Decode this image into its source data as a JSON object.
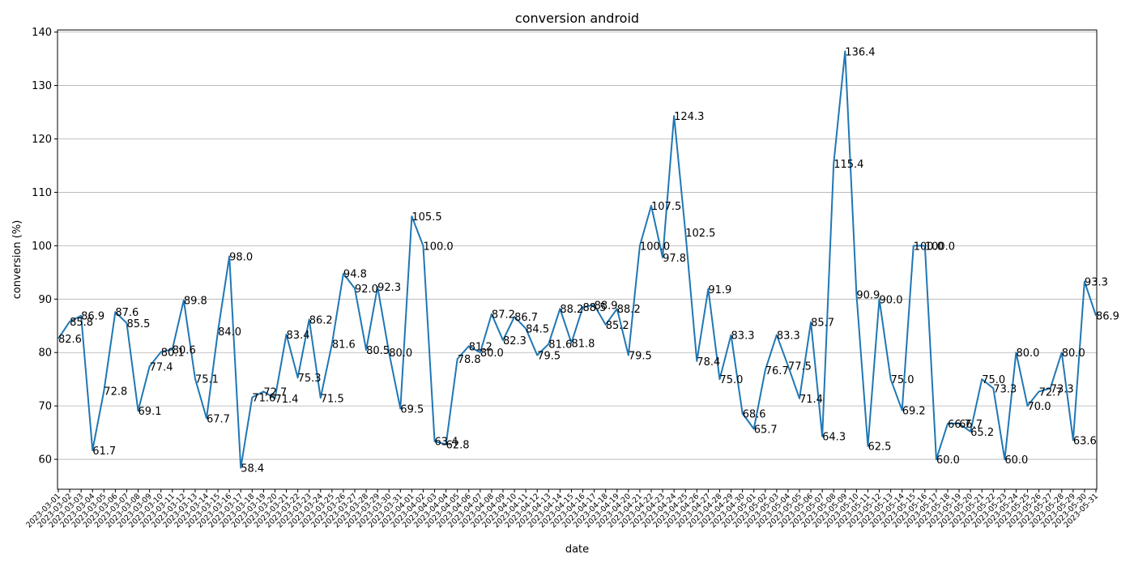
{
  "chart_data": {
    "type": "line",
    "title": "conversion android",
    "xlabel": "date",
    "ylabel": "conversion (%)",
    "grid": "y",
    "ylim": [
      54.4,
      140.4
    ],
    "yticks": [
      60,
      70,
      80,
      90,
      100,
      110,
      120,
      130,
      140
    ],
    "color": "#1f77b4",
    "x": [
      "2023-03-01",
      "2023-03-02",
      "2023-03-03",
      "2023-03-04",
      "2023-03-05",
      "2023-03-06",
      "2023-03-07",
      "2023-03-08",
      "2023-03-09",
      "2023-03-10",
      "2023-03-11",
      "2023-03-12",
      "2023-03-13",
      "2023-03-14",
      "2023-03-15",
      "2023-03-16",
      "2023-03-17",
      "2023-03-18",
      "2023-03-19",
      "2023-03-20",
      "2023-03-21",
      "2023-03-22",
      "2023-03-23",
      "2023-03-24",
      "2023-03-25",
      "2023-03-26",
      "2023-03-27",
      "2023-03-28",
      "2023-03-29",
      "2023-03-30",
      "2023-03-31",
      "2023-04-01",
      "2023-04-02",
      "2023-04-03",
      "2023-04-04",
      "2023-04-05",
      "2023-04-06",
      "2023-04-07",
      "2023-04-08",
      "2023-04-09",
      "2023-04-10",
      "2023-04-11",
      "2023-04-12",
      "2023-04-13",
      "2023-04-14",
      "2023-04-15",
      "2023-04-16",
      "2023-04-17",
      "2023-04-18",
      "2023-04-19",
      "2023-04-20",
      "2023-04-21",
      "2023-04-22",
      "2023-04-23",
      "2023-04-24",
      "2023-04-25",
      "2023-04-26",
      "2023-04-27",
      "2023-04-28",
      "2023-04-29",
      "2023-04-30",
      "2023-05-01",
      "2023-05-02",
      "2023-05-03",
      "2023-05-04",
      "2023-05-05",
      "2023-05-06",
      "2023-05-07",
      "2023-05-08",
      "2023-05-09",
      "2023-05-10",
      "2023-05-11",
      "2023-05-12",
      "2023-05-13",
      "2023-05-14",
      "2023-05-15",
      "2023-05-16",
      "2023-05-17",
      "2023-05-18",
      "2023-05-19",
      "2023-05-20",
      "2023-05-21",
      "2023-05-22",
      "2023-05-23",
      "2023-05-24",
      "2023-05-25",
      "2023-05-26",
      "2023-05-27",
      "2023-05-28",
      "2023-05-29",
      "2023-05-30",
      "2023-05-31"
    ],
    "values": [
      82.6,
      85.8,
      86.9,
      61.7,
      72.8,
      87.6,
      85.5,
      69.1,
      77.4,
      80.1,
      80.6,
      89.8,
      75.1,
      67.7,
      84.0,
      98.0,
      58.4,
      71.6,
      72.7,
      71.4,
      83.4,
      75.3,
      86.2,
      71.5,
      81.6,
      94.8,
      92.0,
      80.5,
      92.3,
      80.0,
      69.5,
      105.5,
      100.0,
      63.4,
      62.8,
      78.8,
      81.2,
      80.0,
      87.2,
      82.3,
      86.7,
      84.5,
      79.5,
      81.6,
      88.2,
      81.8,
      88.5,
      88.9,
      85.2,
      88.2,
      79.5,
      100.0,
      107.5,
      97.8,
      124.3,
      102.5,
      78.4,
      91.9,
      75.0,
      83.3,
      68.6,
      65.7,
      76.7,
      83.3,
      77.5,
      71.4,
      85.7,
      64.3,
      115.4,
      136.4,
      90.9,
      62.5,
      90.0,
      75.0,
      69.2,
      100.0,
      100.0,
      60.0,
      66.7,
      66.7,
      65.2,
      75.0,
      73.3,
      60.0,
      80.0,
      70.0,
      72.7,
      73.3,
      80.0,
      63.6,
      93.3,
      86.9
    ]
  }
}
